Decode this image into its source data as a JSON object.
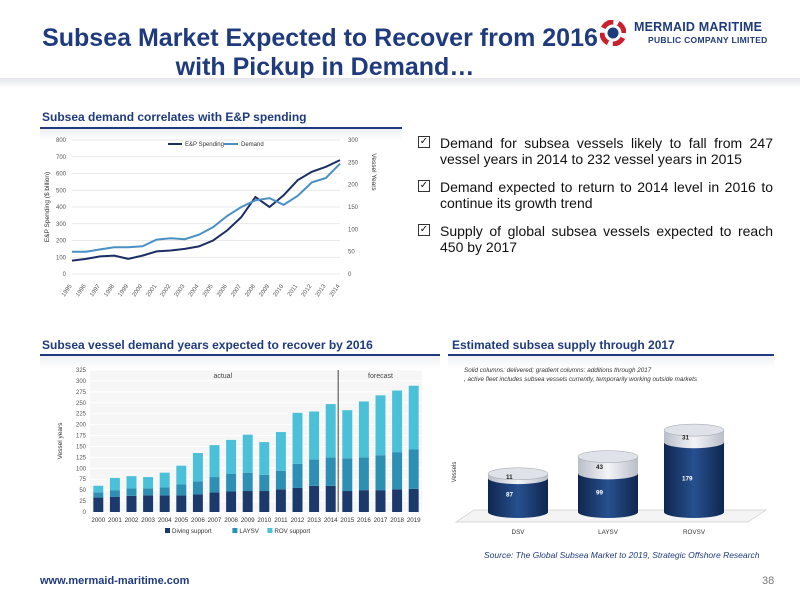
{
  "slide": {
    "title_line1": "Subsea Market Expected to Recover from 2016",
    "title_line2": "with Pickup in Demand…",
    "logo_line1": "MERMAID MARITIME",
    "logo_line2": "PUBLIC COMPANY LIMITED",
    "url": "www.mermaid-maritime.com",
    "page_number": "38",
    "source": "Source: The Global Subsea Market to 2019, Strategic Offshore Research",
    "colors": {
      "title": "#1f3b7d",
      "accent": "#1f3b7d",
      "teal": "#4bc0d9",
      "mid": "#2e8fb4",
      "navy": "#1b3a6b"
    }
  },
  "sections": {
    "chart1_title": "Subsea demand correlates with E&P spending",
    "chart2_title": "Subsea vessel demand years expected to recover by 2016",
    "chart3_title": "Estimated subsea supply through 2017"
  },
  "bullets": [
    {
      "icon": "checkbox-icon",
      "text": "Demand for subsea vessels likely to fall from 247 vessel years in 2014 to 232 vessel years in 2015"
    },
    {
      "icon": "checkbox-icon",
      "text": "Demand expected to return to 2014 level in 2016 to continue its growth trend"
    },
    {
      "icon": "checkbox-icon",
      "text": "Supply of global subsea vessels expected to reach 450 by 2017"
    }
  ],
  "chart_data": [
    {
      "type": "line",
      "x": [
        "1995",
        "1996",
        "1997",
        "1998",
        "1999",
        "2000",
        "2001",
        "2002",
        "2003",
        "2004",
        "2005",
        "2006",
        "2007",
        "2008",
        "2009",
        "2010",
        "2011",
        "2012",
        "2013",
        "2014"
      ],
      "series": [
        {
          "name": "E&P Spending",
          "axis": "left",
          "color": "#1b2f66",
          "values": [
            80,
            90,
            105,
            110,
            90,
            110,
            135,
            140,
            150,
            165,
            200,
            260,
            340,
            460,
            400,
            470,
            560,
            610,
            640,
            680
          ]
        },
        {
          "name": "Demand",
          "axis": "right",
          "color": "#4a90c4",
          "values": [
            50,
            50,
            55,
            60,
            60,
            62,
            77,
            80,
            78,
            88,
            105,
            130,
            150,
            165,
            170,
            155,
            175,
            205,
            215,
            247
          ]
        }
      ],
      "ylabel": "E&P Spending ($ billion)",
      "y2label": "Vessel Years",
      "ylim": [
        0,
        800
      ],
      "y2lim": [
        0,
        300
      ],
      "yticks": [
        "0",
        "100",
        "200",
        "300",
        "400",
        "500",
        "600",
        "700",
        "800"
      ],
      "y2ticks": [
        "0",
        "50",
        "100",
        "150",
        "200",
        "250",
        "300"
      ],
      "grid": true,
      "legend": "top"
    },
    {
      "type": "bar",
      "stacked": true,
      "categories": [
        "2000",
        "2001",
        "2002",
        "2003",
        "2004",
        "2005",
        "2006",
        "2007",
        "2008",
        "2009",
        "2010",
        "2011",
        "2012",
        "2013",
        "2014",
        "2015",
        "2016",
        "2017",
        "2018",
        "2019"
      ],
      "series": [
        {
          "name": "Diving support",
          "color": "#1b3a6b",
          "values": [
            33,
            35,
            37,
            38,
            38,
            38,
            40,
            45,
            47,
            48,
            48,
            52,
            55,
            60,
            60,
            48,
            50,
            50,
            52,
            53
          ]
        },
        {
          "name": "LAYSV",
          "color": "#2e8fb4",
          "values": [
            12,
            15,
            17,
            16,
            18,
            25,
            30,
            35,
            40,
            42,
            37,
            42,
            55,
            60,
            65,
            75,
            75,
            80,
            85,
            90
          ]
        },
        {
          "name": "ROV support",
          "color": "#4bc0d9",
          "values": [
            15,
            28,
            28,
            26,
            34,
            43,
            65,
            73,
            78,
            87,
            75,
            89,
            117,
            110,
            122,
            110,
            128,
            137,
            141,
            146
          ]
        }
      ],
      "annotations": [
        "actual",
        "forecast"
      ],
      "ylabel": "Vessel years",
      "ylim": [
        0,
        325
      ],
      "yticks": [
        "0",
        "25",
        "50",
        "75",
        "100",
        "125",
        "150",
        "175",
        "200",
        "225",
        "250",
        "275",
        "300",
        "325"
      ],
      "grid": true,
      "legend": "bottom"
    },
    {
      "type": "bar",
      "stacked": true,
      "note": "Solid columns: delivered;  gradient columns: additions through 2017, active fleet includes subsea vessels currently, temporarily working outside markets",
      "categories": [
        "DSV",
        "LAYSV",
        "ROVSV"
      ],
      "series": [
        {
          "name": "Delivered",
          "values": [
            87,
            99,
            179
          ]
        },
        {
          "name": "Additions through 2017",
          "values": [
            11,
            43,
            31
          ]
        }
      ],
      "ylabel": "Vessels",
      "ylim": [
        0,
        230
      ]
    }
  ]
}
